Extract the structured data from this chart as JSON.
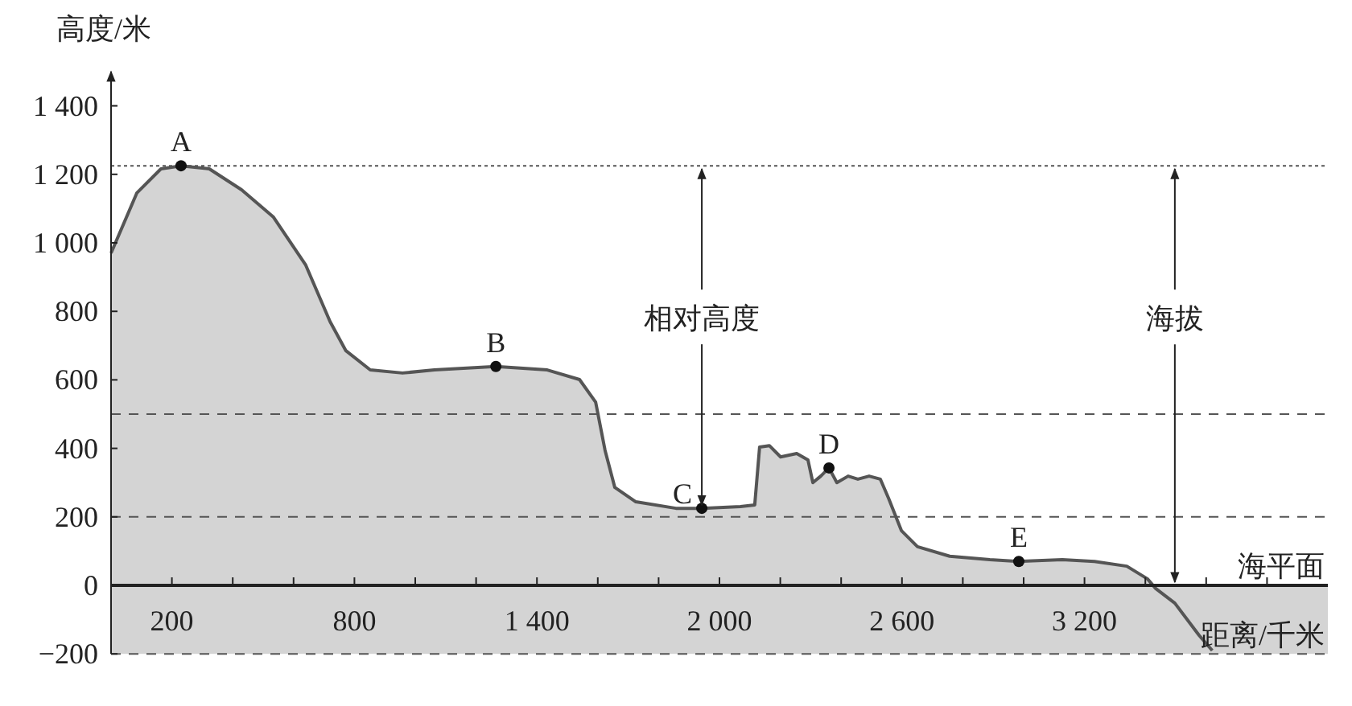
{
  "chart_data": {
    "type": "area",
    "xlabel": "距离/千米",
    "ylabel": "高度/米",
    "x": [
      0,
      85,
      164,
      230,
      323,
      429,
      534,
      640,
      720,
      772,
      852,
      958,
      1063,
      1265,
      1434,
      1540,
      1593,
      1624,
      1656,
      1725,
      1857,
      1942,
      2069,
      2116,
      2132,
      2164,
      2201,
      2254,
      2291,
      2307,
      2333,
      2360,
      2386,
      2423,
      2455,
      2492,
      2529,
      2556,
      2598,
      2651,
      2757,
      2889,
      2984,
      3127,
      3233,
      3339,
      3407,
      3434,
      3497,
      3577,
      3620
    ],
    "series": [
      {
        "color": "#d4d4d4",
        "values": [
          970,
          1146,
          1216,
          1225,
          1216,
          1155,
          1075,
          935,
          770,
          685,
          629,
          620,
          629,
          639,
          629,
          601,
          535,
          394,
          286,
          244,
          225,
          225,
          230,
          235,
          404,
          408,
          375,
          385,
          366,
          300,
          319,
          343,
          300,
          319,
          310,
          319,
          310,
          254,
          160,
          113,
          85,
          75,
          70,
          75,
          70,
          56,
          19,
          -9,
          -52,
          -146,
          -190
        ]
      }
    ],
    "xlim": [
      0,
      4000
    ],
    "ylim": [
      -200,
      1500
    ],
    "xticks": [
      {
        "value": 200,
        "label": "200"
      },
      {
        "value": 400,
        "label": null
      },
      {
        "value": 600,
        "label": null
      },
      {
        "value": 800,
        "label": "800"
      },
      {
        "value": 1000,
        "label": null
      },
      {
        "value": 1200,
        "label": null
      },
      {
        "value": 1400,
        "label": "1 400"
      },
      {
        "value": 1600,
        "label": null
      },
      {
        "value": 1800,
        "label": null
      },
      {
        "value": 2000,
        "label": "2 000"
      },
      {
        "value": 2200,
        "label": null
      },
      {
        "value": 2400,
        "label": null
      },
      {
        "value": 2600,
        "label": "2 600"
      },
      {
        "value": 2800,
        "label": null
      },
      {
        "value": 3000,
        "label": null
      },
      {
        "value": 3200,
        "label": "3 200"
      },
      {
        "value": 3400,
        "label": null
      },
      {
        "value": 3600,
        "label": null
      },
      {
        "value": 3800,
        "label": null
      }
    ],
    "yticks": [
      {
        "value": -200,
        "label": "−200"
      },
      0,
      200,
      400,
      600,
      800,
      {
        "value": 1000,
        "label": "1 000"
      },
      {
        "value": 1200,
        "label": "1 200"
      },
      {
        "value": 1400,
        "label": "1 400"
      }
    ],
    "ref_lines": [
      {
        "axis": "y",
        "value": 1225,
        "line_style": "dotted"
      },
      {
        "axis": "y",
        "value": 500,
        "line_style": "dashed"
      },
      {
        "axis": "y",
        "value": 200,
        "line_style": "dashed"
      }
    ],
    "annotations": [
      {
        "text": "A",
        "x": 230,
        "y": 1225
      },
      {
        "text": "B",
        "x": 1265,
        "y": 639
      },
      {
        "text": "C",
        "x": 1942,
        "y": 225
      },
      {
        "text": "D",
        "x": 2360,
        "y": 343
      },
      {
        "text": "E",
        "x": 2984,
        "y": 70
      },
      {
        "text": "相对高度",
        "x": 1942,
        "y": 1225
      },
      {
        "text": "海拔",
        "x": 3497,
        "y": 1225
      },
      "海平面"
    ],
    "bands": [
      {
        "axis": "y",
        "from": -200,
        "to": 0,
        "color": "#d4d4d4"
      }
    ],
    "grid": false
  }
}
